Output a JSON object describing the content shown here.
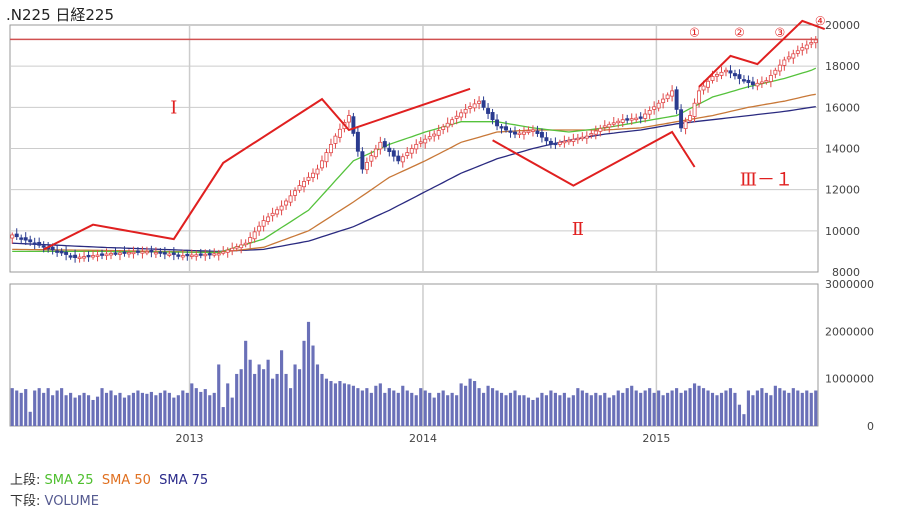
{
  "header": {
    "title": ".N225 日経225"
  },
  "legend": {
    "upper_label": "上段:",
    "sma25": "SMA 25",
    "sma50": "SMA 50",
    "sma75": "SMA 75",
    "lower_label": "下段:",
    "volume": "VOLUME"
  },
  "colors": {
    "up_candle": "#e04848",
    "down_candle": "#2a3b8f",
    "sma25": "#55c23c",
    "sma50": "#c87838",
    "sma75": "#2a2a80",
    "volume_bar": "#6a70b8",
    "annotation": "#e02020",
    "reference_line": "#d05050",
    "grid": "#cccccc"
  },
  "chart_data": [
    {
      "type": "candlestick",
      "x_ticks": [
        "2013",
        "2014",
        "2015"
      ],
      "y_ticks": [
        "8000",
        "10000",
        "12000",
        "14000",
        "16000",
        "18000",
        "20000"
      ],
      "ylim": [
        8000,
        20000
      ],
      "reference_line": 19300,
      "price_path": [
        [
          0,
          9800
        ],
        [
          6,
          9300
        ],
        [
          14,
          8700
        ],
        [
          22,
          8900
        ],
        [
          30,
          9000
        ],
        [
          38,
          8800
        ],
        [
          46,
          8900
        ],
        [
          52,
          9400
        ],
        [
          56,
          10500
        ],
        [
          60,
          11200
        ],
        [
          64,
          12200
        ],
        [
          68,
          13000
        ],
        [
          72,
          14600
        ],
        [
          75,
          15600
        ],
        [
          78,
          13000
        ],
        [
          82,
          14300
        ],
        [
          86,
          13400
        ],
        [
          90,
          14200
        ],
        [
          94,
          14700
        ],
        [
          98,
          15400
        ],
        [
          101,
          15900
        ],
        [
          104,
          16300
        ],
        [
          108,
          15100
        ],
        [
          112,
          14700
        ],
        [
          116,
          14900
        ],
        [
          120,
          14200
        ],
        [
          124,
          14400
        ],
        [
          128,
          14600
        ],
        [
          132,
          15100
        ],
        [
          136,
          15400
        ],
        [
          140,
          15500
        ],
        [
          144,
          16200
        ],
        [
          147,
          16800
        ],
        [
          149,
          15000
        ],
        [
          151,
          15600
        ],
        [
          153,
          16800
        ],
        [
          156,
          17500
        ],
        [
          159,
          17800
        ],
        [
          162,
          17400
        ],
        [
          165,
          17100
        ],
        [
          168,
          17300
        ],
        [
          172,
          18300
        ],
        [
          176,
          18900
        ],
        [
          180,
          19400
        ],
        [
          182,
          19200
        ],
        [
          184,
          19400
        ]
      ],
      "sma25_path": [
        [
          0,
          9000
        ],
        [
          20,
          9000
        ],
        [
          46,
          8950
        ],
        [
          56,
          9600
        ],
        [
          66,
          11000
        ],
        [
          76,
          13400
        ],
        [
          84,
          14200
        ],
        [
          92,
          14800
        ],
        [
          100,
          15300
        ],
        [
          108,
          15300
        ],
        [
          116,
          15000
        ],
        [
          124,
          14800
        ],
        [
          132,
          15000
        ],
        [
          140,
          15300
        ],
        [
          148,
          15600
        ],
        [
          156,
          16500
        ],
        [
          164,
          17000
        ],
        [
          172,
          17400
        ],
        [
          178,
          17800
        ],
        [
          184,
          18400
        ]
      ],
      "sma50_path": [
        [
          0,
          9100
        ],
        [
          20,
          9050
        ],
        [
          46,
          8950
        ],
        [
          56,
          9200
        ],
        [
          66,
          10000
        ],
        [
          76,
          11400
        ],
        [
          84,
          12600
        ],
        [
          92,
          13400
        ],
        [
          100,
          14300
        ],
        [
          108,
          14800
        ],
        [
          116,
          14900
        ],
        [
          124,
          14900
        ],
        [
          132,
          14900
        ],
        [
          140,
          15000
        ],
        [
          148,
          15300
        ],
        [
          156,
          15600
        ],
        [
          164,
          16000
        ],
        [
          172,
          16300
        ],
        [
          178,
          16600
        ],
        [
          184,
          16800
        ]
      ],
      "sma75_path": [
        [
          0,
          9400
        ],
        [
          20,
          9200
        ],
        [
          46,
          9000
        ],
        [
          56,
          9100
        ],
        [
          66,
          9500
        ],
        [
          76,
          10200
        ],
        [
          84,
          11000
        ],
        [
          92,
          11900
        ],
        [
          100,
          12800
        ],
        [
          108,
          13500
        ],
        [
          116,
          14000
        ],
        [
          124,
          14400
        ],
        [
          132,
          14700
        ],
        [
          140,
          14900
        ],
        [
          148,
          15200
        ],
        [
          156,
          15400
        ],
        [
          164,
          15600
        ],
        [
          172,
          15800
        ],
        [
          178,
          16000
        ],
        [
          184,
          16200
        ]
      ],
      "annotations": [
        {
          "text": "Ⅰ",
          "x": 36,
          "y": 15700
        },
        {
          "text": "Ⅱ",
          "x": 126,
          "y": 9800
        },
        {
          "text": "Ⅲ－１",
          "x": 168,
          "y": 12200
        },
        {
          "text": "①",
          "x": 152,
          "y": 19450
        },
        {
          "text": "②",
          "x": 162,
          "y": 19450
        },
        {
          "text": "③",
          "x": 171,
          "y": 19450
        },
        {
          "text": "④",
          "x": 180,
          "y": 20000
        }
      ],
      "trend_lines": [
        [
          [
            7,
            9100
          ],
          [
            18,
            10300
          ],
          [
            36,
            9600
          ],
          [
            47,
            13300
          ],
          [
            69,
            16400
          ],
          [
            75,
            14900
          ],
          [
            102,
            16900
          ]
        ],
        [
          [
            107,
            14400
          ],
          [
            125,
            12200
          ],
          [
            147,
            14800
          ],
          [
            152,
            13100
          ]
        ],
        [
          [
            153,
            17000
          ],
          [
            160,
            18500
          ],
          [
            166,
            18100
          ],
          [
            176,
            20200
          ],
          [
            181,
            19800
          ]
        ]
      ]
    },
    {
      "type": "bar",
      "series_name": "VOLUME",
      "y_ticks": [
        "0",
        "1000000",
        "2000000",
        "3000000"
      ],
      "ylim": [
        0,
        3000000
      ],
      "values": [
        800000,
        750000,
        700000,
        780000,
        300000,
        750000,
        800000,
        700000,
        800000,
        650000,
        750000,
        800000,
        650000,
        700000,
        600000,
        650000,
        700000,
        650000,
        550000,
        620000,
        800000,
        700000,
        750000,
        650000,
        700000,
        600000,
        650000,
        700000,
        750000,
        700000,
        680000,
        720000,
        650000,
        700000,
        750000,
        700000,
        600000,
        650000,
        750000,
        700000,
        900000,
        800000,
        720000,
        780000,
        650000,
        700000,
        1300000,
        400000,
        900000,
        600000,
        1100000,
        1200000,
        1800000,
        1400000,
        1100000,
        1300000,
        1200000,
        1400000,
        1000000,
        1100000,
        1600000,
        1100000,
        800000,
        1300000,
        1200000,
        1800000,
        2200000,
        1700000,
        1300000,
        1100000,
        1000000,
        950000,
        900000,
        950000,
        900000,
        880000,
        850000,
        800000,
        750000,
        800000,
        700000,
        850000,
        900000,
        700000,
        800000,
        750000,
        700000,
        850000,
        750000,
        700000,
        650000,
        800000,
        750000,
        700000,
        600000,
        700000,
        750000,
        650000,
        700000,
        650000,
        900000,
        850000,
        1000000,
        950000,
        800000,
        700000,
        850000,
        800000,
        750000,
        700000,
        650000,
        700000,
        750000,
        650000,
        650000,
        600000,
        550000,
        600000,
        700000,
        650000,
        750000,
        700000,
        650000,
        700000,
        600000,
        650000,
        800000,
        750000,
        700000,
        650000,
        700000,
        650000,
        700000,
        600000,
        650000,
        750000,
        700000,
        800000,
        850000,
        750000,
        700000,
        750000,
        800000,
        700000,
        750000,
        650000,
        700000,
        750000,
        800000,
        700000,
        750000,
        800000,
        900000,
        850000,
        800000,
        750000,
        700000,
        650000,
        700000,
        750000,
        800000,
        700000,
        450000,
        250000,
        750000,
        650000,
        750000,
        800000,
        700000,
        650000,
        850000,
        800000,
        750000,
        700000,
        800000,
        750000,
        700000,
        750000,
        700000,
        750000
      ]
    }
  ]
}
